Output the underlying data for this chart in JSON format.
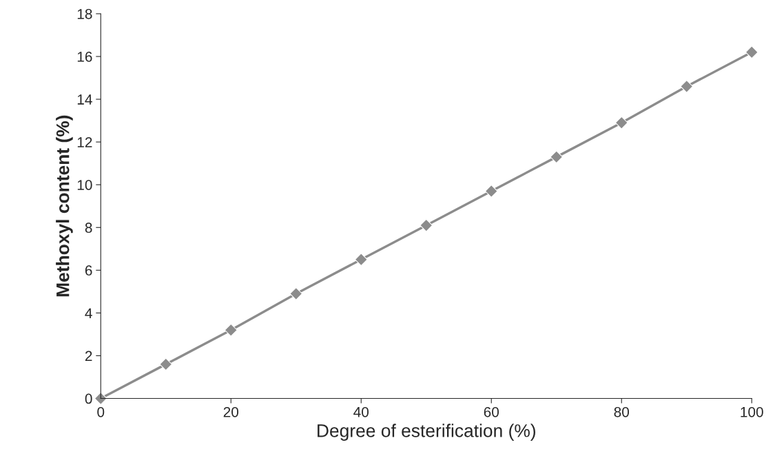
{
  "chart_data": {
    "type": "line",
    "xlabel": "Degree of esterification (%)",
    "ylabel": "Methoxyl content (%)",
    "x": [
      0,
      10,
      20,
      30,
      40,
      50,
      60,
      70,
      80,
      90,
      100
    ],
    "series": [
      {
        "color": "#8c8c8c",
        "values": [
          0,
          1.6,
          3.2,
          4.9,
          6.5,
          8.1,
          9.7,
          11.3,
          12.9,
          14.6,
          16.2
        ]
      }
    ],
    "xlim": [
      0,
      100
    ],
    "xticks": [
      0,
      20,
      40,
      60,
      80,
      100
    ],
    "ylim": [
      0,
      18
    ],
    "yticks": [
      0,
      2,
      4,
      6,
      8,
      10,
      12,
      14,
      16,
      18
    ],
    "grid": false,
    "legend": false,
    "marker": "diamond",
    "line_style": "solid"
  }
}
